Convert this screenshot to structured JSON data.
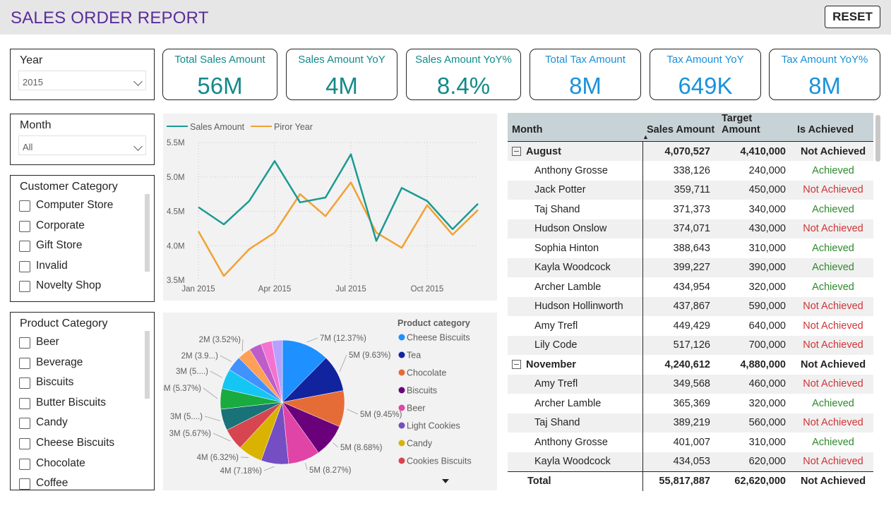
{
  "header": {
    "title": "SALES ORDER REPORT",
    "reset_label": "RESET"
  },
  "filters": {
    "year": {
      "title": "Year",
      "value": "2015"
    },
    "month": {
      "title": "Month",
      "value": "All"
    },
    "customer_category": {
      "title": "Customer Category",
      "items": [
        "Computer Store",
        "Corporate",
        "Gift Store",
        "Invalid",
        "Novelty Shop"
      ]
    },
    "product_category": {
      "title": "Product Category",
      "items": [
        "Beer",
        "Beverage",
        "Biscuits",
        "Butter Biscuits",
        "Candy",
        "Cheese Biscuits",
        "Chocolate",
        "Coffee"
      ]
    }
  },
  "kpis": [
    {
      "label": "Total Sales Amount",
      "value": "56M"
    },
    {
      "label": "Sales Amount YoY",
      "value": "4M"
    },
    {
      "label": "Sales Amount YoY%",
      "value": "8.4%"
    },
    {
      "label": "Total Tax Amount",
      "value": "8M"
    },
    {
      "label": "Tax Amount YoY",
      "value": "649K"
    },
    {
      "label": "Tax Amount YoY%",
      "value": "8M"
    }
  ],
  "colors": {
    "sales": "#1a9a93",
    "prior": "#f2a134",
    "title": "#5b2c9d"
  },
  "chart_data": [
    {
      "type": "line",
      "legend_position": "top-left",
      "x_tick_labels": [
        "Jan 2015",
        "Apr 2015",
        "Jul 2015",
        "Oct 2015"
      ],
      "y_tick_labels": [
        "5.5M",
        "5.0M",
        "4.5M",
        "4.0M",
        "3.5M"
      ],
      "ylim": [
        3.5,
        5.5
      ],
      "x": [
        "Jan 2015",
        "Feb 2015",
        "Mar 2015",
        "Apr 2015",
        "May 2015",
        "Jun 2015",
        "Jul 2015",
        "Aug 2015",
        "Sep 2015",
        "Oct 2015",
        "Nov 2015",
        "Dec 2015"
      ],
      "series": [
        {
          "name": "Sales Amount",
          "color": "#1a9a93",
          "values": [
            4.56,
            4.31,
            4.65,
            5.23,
            4.63,
            4.7,
            5.33,
            4.07,
            4.84,
            4.65,
            4.24,
            4.61
          ]
        },
        {
          "name": "Piror Year",
          "color": "#f2a134",
          "values": [
            4.21,
            3.56,
            3.95,
            4.19,
            4.75,
            4.43,
            4.92,
            4.19,
            3.97,
            4.59,
            4.16,
            4.52
          ]
        }
      ]
    },
    {
      "type": "pie",
      "legend_title": "Product category",
      "legend": [
        {
          "name": "Cheese Biscuits",
          "color": "#1e90ff"
        },
        {
          "name": "Tea",
          "color": "#12239e"
        },
        {
          "name": "Chocolate",
          "color": "#e66c37"
        },
        {
          "name": "Biscuits",
          "color": "#6b007b"
        },
        {
          "name": "Beer",
          "color": "#e044a7"
        },
        {
          "name": "Light Cookies",
          "color": "#744ec2"
        },
        {
          "name": "Candy",
          "color": "#d9b300"
        },
        {
          "name": "Cookies Biscuits",
          "color": "#d64550"
        }
      ],
      "slices": [
        {
          "value": 12.37,
          "color": "#1e90ff",
          "label": "7M (12.37%)"
        },
        {
          "value": 9.63,
          "color": "#12239e",
          "label": "5M (9.63%)"
        },
        {
          "value": 9.45,
          "color": "#e66c37",
          "label": "5M (9.45%)"
        },
        {
          "value": 8.68,
          "color": "#6b007b",
          "label": "5M (8.68%)"
        },
        {
          "value": 8.27,
          "color": "#e044a7",
          "label": "5M (8.27%)"
        },
        {
          "value": 7.18,
          "color": "#744ec2",
          "label": "4M (7.18%)"
        },
        {
          "value": 6.32,
          "color": "#d9b300",
          "label": "4M (6.32%)"
        },
        {
          "value": 5.67,
          "color": "#d64550",
          "label": "3M (5.67%)"
        },
        {
          "value": 5.6,
          "color": "#197278",
          "label": "3M (5....)"
        },
        {
          "value": 5.37,
          "color": "#1aab40",
          "label": "3M (5.37%)"
        },
        {
          "value": 5.2,
          "color": "#15c6f4",
          "label": "3M (5....)"
        },
        {
          "value": 3.9,
          "color": "#4092ff",
          "label": "2M (3.9...)"
        },
        {
          "value": 3.52,
          "color": "#ffa058",
          "label": "2M (3.52%)"
        },
        {
          "value": 3.2,
          "color": "#be5dc9",
          "label": ""
        },
        {
          "value": 2.9,
          "color": "#f472d0",
          "label": ""
        },
        {
          "value": 2.73,
          "color": "#b5a1ff",
          "label": ""
        }
      ]
    }
  ],
  "table": {
    "columns": [
      "Month",
      "Sales Amount",
      "Target Amount",
      "Is Achieved"
    ],
    "rows": [
      {
        "type": "group",
        "name": "August",
        "sales": "4,070,527",
        "target": "4,410,000",
        "status": "Not Achieved"
      },
      {
        "type": "item",
        "name": "Anthony Grosse",
        "sales": "338,126",
        "target": "240,000",
        "status": "Achieved"
      },
      {
        "type": "item",
        "name": "Jack Potter",
        "sales": "359,711",
        "target": "450,000",
        "status": "Not Achieved"
      },
      {
        "type": "item",
        "name": "Taj Shand",
        "sales": "371,373",
        "target": "340,000",
        "status": "Achieved"
      },
      {
        "type": "item",
        "name": "Hudson Onslow",
        "sales": "374,071",
        "target": "430,000",
        "status": "Not Achieved"
      },
      {
        "type": "item",
        "name": "Sophia Hinton",
        "sales": "388,643",
        "target": "310,000",
        "status": "Achieved"
      },
      {
        "type": "item",
        "name": "Kayla Woodcock",
        "sales": "399,227",
        "target": "390,000",
        "status": "Achieved"
      },
      {
        "type": "item",
        "name": "Archer Lamble",
        "sales": "434,954",
        "target": "320,000",
        "status": "Achieved"
      },
      {
        "type": "item",
        "name": "Hudson Hollinworth",
        "sales": "437,867",
        "target": "590,000",
        "status": "Not Achieved"
      },
      {
        "type": "item",
        "name": "Amy Trefl",
        "sales": "449,429",
        "target": "640,000",
        "status": "Not Achieved"
      },
      {
        "type": "item",
        "name": "Lily Code",
        "sales": "517,126",
        "target": "700,000",
        "status": "Not Achieved"
      },
      {
        "type": "group",
        "name": "November",
        "sales": "4,240,612",
        "target": "4,880,000",
        "status": "Not Achieved"
      },
      {
        "type": "item",
        "name": "Amy Trefl",
        "sales": "349,568",
        "target": "460,000",
        "status": "Not Achieved"
      },
      {
        "type": "item",
        "name": "Archer Lamble",
        "sales": "365,369",
        "target": "320,000",
        "status": "Achieved"
      },
      {
        "type": "item",
        "name": "Taj Shand",
        "sales": "389,219",
        "target": "560,000",
        "status": "Not Achieved"
      },
      {
        "type": "item",
        "name": "Anthony Grosse",
        "sales": "401,007",
        "target": "310,000",
        "status": "Achieved"
      },
      {
        "type": "item",
        "name": "Kayla Woodcock",
        "sales": "434,053",
        "target": "620,000",
        "status": "Not Achieved"
      }
    ],
    "total": {
      "name": "Total",
      "sales": "55,817,887",
      "target": "62,620,000",
      "status": "Not Achieved"
    }
  }
}
